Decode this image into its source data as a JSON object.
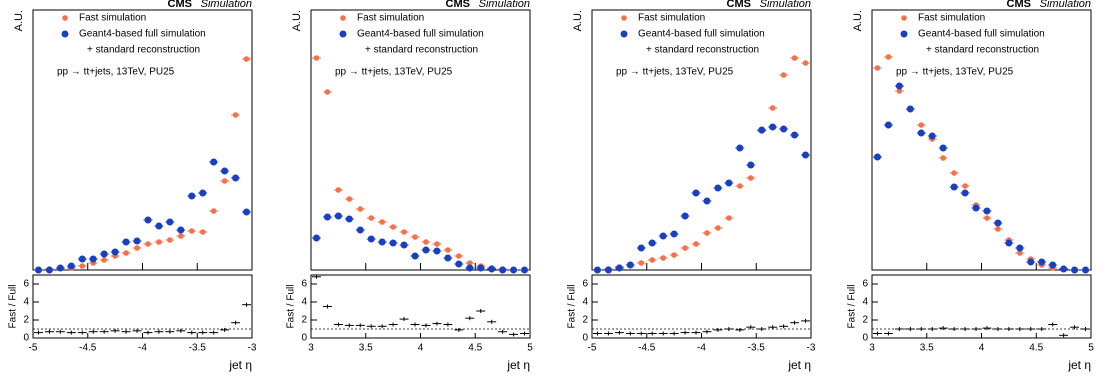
{
  "chart_data": [
    {
      "type": "scatter",
      "title_bold": "CMS",
      "title": "Simulation",
      "ylabel": "A.U.",
      "xlabel": "jet η",
      "annotation_legend": "+ standard reconstruction",
      "annotation": "pp → tt+jets, 13TeV, PU25",
      "x": [
        -4.95,
        -4.85,
        -4.75,
        -4.65,
        -4.55,
        -4.45,
        -4.35,
        -4.25,
        -4.15,
        -4.05,
        -3.95,
        -3.85,
        -3.75,
        -3.65,
        -3.55,
        -3.45,
        -3.35,
        -3.25,
        -3.15,
        -3.05
      ],
      "xlim": [
        -5,
        -3
      ],
      "xticks": [
        -5,
        -4.5,
        -4,
        -3.5,
        -3
      ],
      "ylim": [
        0,
        260
      ],
      "series": [
        {
          "name": "Fast simulation",
          "color": "#f4714a",
          "values": [
            0,
            1,
            2,
            2,
            4,
            7,
            10,
            14,
            17,
            22,
            26,
            28,
            30,
            34,
            39,
            38,
            59,
            89,
            155,
            211
          ]
        },
        {
          "name": "Geant4-based full simulation",
          "color": "#1a3fbf",
          "values": [
            0,
            0,
            2,
            4,
            11,
            11,
            16,
            18,
            28,
            29,
            50,
            44,
            48,
            40,
            74,
            77,
            108,
            99,
            92,
            58
          ]
        }
      ],
      "ratio": {
        "ylabel": "Fast / Full",
        "ylim": [
          0,
          7
        ],
        "yticks": [
          0,
          2,
          4,
          6
        ],
        "reference": 1,
        "values": [
          0.6,
          0.7,
          0.7,
          0.6,
          0.6,
          0.7,
          0.7,
          0.8,
          0.7,
          0.8,
          0.6,
          0.7,
          0.7,
          0.8,
          0.6,
          0.6,
          0.6,
          0.9,
          1.7,
          3.7
        ]
      }
    },
    {
      "type": "scatter",
      "title_bold": "CMS",
      "title": "Simulation",
      "ylabel": "A.U.",
      "xlabel": "jet η",
      "annotation_legend": "+ standard reconstruction",
      "annotation": "pp → tt+jets, 13TeV, PU25",
      "x": [
        3.05,
        3.15,
        3.25,
        3.35,
        3.45,
        3.55,
        3.65,
        3.75,
        3.85,
        3.95,
        4.05,
        4.15,
        4.25,
        4.35,
        4.45,
        4.55,
        4.65,
        4.75,
        4.85,
        4.95
      ],
      "xlim": [
        3,
        5
      ],
      "xticks": [
        3,
        3.5,
        4,
        4.5,
        5
      ],
      "ylim": [
        0,
        260
      ],
      "series": [
        {
          "name": "Fast simulation",
          "color": "#f4714a",
          "values": [
            212,
            178,
            80,
            71,
            61,
            52,
            48,
            43,
            38,
            33,
            28,
            26,
            20,
            14,
            7,
            4,
            2,
            1,
            0,
            0
          ]
        },
        {
          "name": "Geant4-based full simulation",
          "color": "#1a3fbf",
          "values": [
            32,
            53,
            54,
            51,
            40,
            31,
            28,
            27,
            25,
            14,
            20,
            19,
            12,
            6,
            2,
            2,
            1,
            0,
            0,
            0
          ]
        }
      ],
      "ratio": {
        "ylabel": "Fast / Full",
        "ylim": [
          0,
          7
        ],
        "yticks": [
          0,
          2,
          4,
          6
        ],
        "reference": 1,
        "values": [
          6.8,
          3.5,
          1.5,
          1.4,
          1.4,
          1.3,
          1.3,
          1.5,
          2.1,
          1.5,
          1.4,
          1.6,
          1.5,
          0.9,
          2.2,
          3.0,
          1.8,
          0.7,
          0.4,
          0.5
        ]
      }
    },
    {
      "type": "scatter",
      "title_bold": "CMS",
      "title": "Simulation",
      "ylabel": "A.U.",
      "xlabel": "jet η",
      "annotation_legend": "+ standard reconstruction",
      "annotation": "pp → tt+jets, 13TeV, PU25",
      "x": [
        -4.95,
        -4.85,
        -4.75,
        -4.65,
        -4.55,
        -4.45,
        -4.35,
        -4.25,
        -4.15,
        -4.05,
        -3.95,
        -3.85,
        -3.75,
        -3.65,
        -3.55,
        -3.45,
        -3.35,
        -3.25,
        -3.15,
        -3.05
      ],
      "xlim": [
        -5,
        -3
      ],
      "xticks": [
        -5,
        -4.5,
        -4,
        -3.5,
        -3
      ],
      "ylim": [
        0,
        260
      ],
      "series": [
        {
          "name": "Fast simulation",
          "color": "#f4714a",
          "values": [
            0,
            1,
            3,
            5,
            7,
            10,
            12,
            15,
            22,
            26,
            37,
            42,
            52,
            84,
            92,
            139,
            162,
            195,
            212,
            207
          ]
        },
        {
          "name": "Geant4-based full simulation",
          "color": "#1a3fbf",
          "values": [
            0,
            0,
            2,
            5,
            22,
            27,
            34,
            36,
            54,
            77,
            69,
            82,
            87,
            122,
            105,
            140,
            143,
            141,
            135,
            115
          ]
        }
      ],
      "ratio": {
        "ylabel": "Fast / Full",
        "ylim": [
          0,
          7
        ],
        "yticks": [
          0,
          2,
          4,
          6
        ],
        "reference": 1,
        "values": [
          0.5,
          0.5,
          0.6,
          0.5,
          0.5,
          0.5,
          0.5,
          0.5,
          0.6,
          0.6,
          0.7,
          0.9,
          1.0,
          0.9,
          1.2,
          1.0,
          1.2,
          1.3,
          1.7,
          1.9
        ]
      }
    },
    {
      "type": "scatter",
      "title_bold": "CMS",
      "title": "Simulation",
      "ylabel": "A.U.",
      "xlabel": "jet η",
      "annotation_legend": "+ standard reconstruction",
      "annotation": "pp → tt+jets, 13TeV, PU25",
      "x": [
        3.05,
        3.15,
        3.25,
        3.35,
        3.45,
        3.55,
        3.65,
        3.75,
        3.85,
        3.95,
        4.05,
        4.15,
        4.25,
        4.35,
        4.45,
        4.55,
        4.65,
        4.75,
        4.85,
        4.95
      ],
      "xlim": [
        3,
        5
      ],
      "xticks": [
        3,
        3.5,
        4,
        4.5,
        5
      ],
      "ylim": [
        0,
        260
      ],
      "series": [
        {
          "name": "Fast simulation",
          "color": "#f4714a",
          "values": [
            202,
            213,
            179,
            161,
            145,
            131,
            112,
            97,
            84,
            65,
            52,
            41,
            30,
            17,
            11,
            5,
            2,
            1,
            0,
            0
          ]
        },
        {
          "name": "Geant4-based full simulation",
          "color": "#1a3fbf",
          "values": [
            113,
            145,
            184,
            161,
            137,
            134,
            122,
            83,
            77,
            62,
            59,
            47,
            27,
            22,
            8,
            8,
            5,
            1,
            0,
            0
          ]
        }
      ],
      "ratio": {
        "ylabel": "Fast / Full",
        "ylim": [
          0,
          7
        ],
        "yticks": [
          0,
          2,
          4,
          6
        ],
        "reference": 1,
        "values": [
          0.5,
          0.5,
          1.0,
          1.0,
          1.0,
          1.0,
          1.1,
          1.0,
          1.0,
          1.0,
          1.1,
          1.0,
          1.0,
          1.0,
          1.0,
          1.0,
          1.5,
          0.3,
          1.2,
          1.0
        ]
      }
    }
  ]
}
